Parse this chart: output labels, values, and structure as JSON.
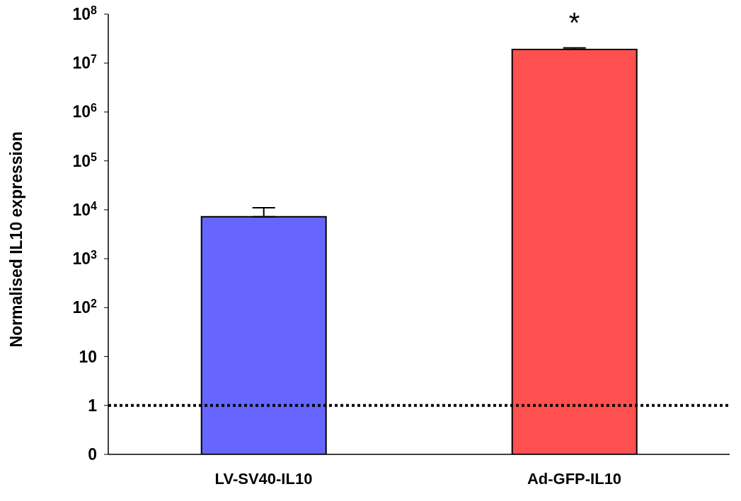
{
  "chart_data": {
    "type": "bar",
    "ylabel": "Normalised IL10 expression",
    "categories": [
      "LV-SV40-IL10",
      "Ad-GFP-IL10"
    ],
    "values": [
      7200,
      19000000
    ],
    "colors": [
      "#6666ff",
      "#ff5050"
    ],
    "errors": [
      [
        7200,
        11000
      ],
      [
        19000000,
        20500000
      ]
    ],
    "log": true,
    "ylim": [
      0.1,
      100000000
    ],
    "yticks": [
      {
        "value": 0.1,
        "label": "0"
      },
      1,
      10,
      {
        "value": 100,
        "label": "10$^{2}$"
      },
      {
        "value": 1000,
        "label": "10$^{3}$"
      },
      {
        "value": 10000,
        "label": "10$^{4}$"
      },
      {
        "value": 100000,
        "label": "10$^{5}$"
      },
      {
        "value": 1000000,
        "label": "10$^{6}$"
      },
      {
        "value": 10000000,
        "label": "10$^{7}$"
      },
      {
        "value": 100000000,
        "label": "10$^{8}$"
      }
    ],
    "ref_lines": [
      {
        "axis": "y",
        "value": 1,
        "color": "#000000",
        "line_style": "dotted"
      }
    ],
    "annotations": [
      "*"
    ]
  }
}
